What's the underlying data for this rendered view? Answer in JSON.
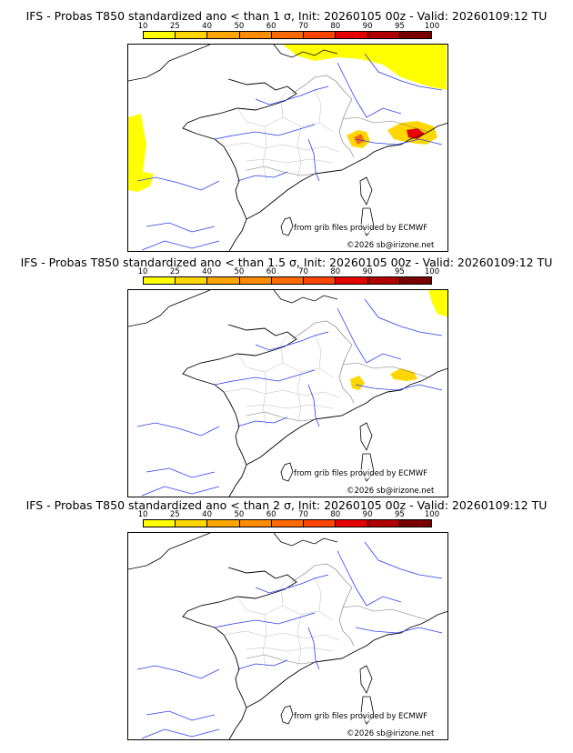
{
  "scale": {
    "ticks": [
      "10",
      "25",
      "40",
      "50",
      "60",
      "70",
      "80",
      "90",
      "95",
      "100"
    ],
    "colors": [
      "#ffff00",
      "#ffd700",
      "#ffa500",
      "#ff8c00",
      "#ff6a00",
      "#ff4500",
      "#e60000",
      "#b00000",
      "#7a0000"
    ]
  },
  "panels": [
    {
      "title": "IFS - Probas T850  standardized ano < than 1 σ, Init: 20260105 00z - Valid: 20260109:12 TU",
      "credit_source": "from grib files provided by ECMWF",
      "credit_copyright": "©2026 sb@irizone.net",
      "anomaly_areas": [
        {
          "region": "north-east border / Germany",
          "level": "10-25"
        },
        {
          "region": "Atlantic off Brittany / Biscay",
          "level": "10-25"
        },
        {
          "region": "Alps (Mont-Blanc, Valais)",
          "level": "70-80"
        },
        {
          "region": "Alps (Italian Piedmont)",
          "level": "80-90"
        }
      ]
    },
    {
      "title": "IFS - Probas T850  standardized ano < than 1.5 σ, Init: 20260105 00z - Valid: 20260109:12 TU",
      "credit_source": "from grib files provided by ECMWF",
      "credit_copyright": "©2026 sb@irizone.net",
      "anomaly_areas": [
        {
          "region": "north-east corner",
          "level": "10-25"
        },
        {
          "region": "Alps",
          "level": "25-40"
        }
      ]
    },
    {
      "title": "IFS - Probas T850  standardized ano < than 2 σ, Init: 20260105 00z - Valid: 20260109:12 TU",
      "credit_source": "from grib files provided by ECMWF",
      "credit_copyright": "©2026 sb@irizone.net",
      "anomaly_areas": []
    }
  ]
}
